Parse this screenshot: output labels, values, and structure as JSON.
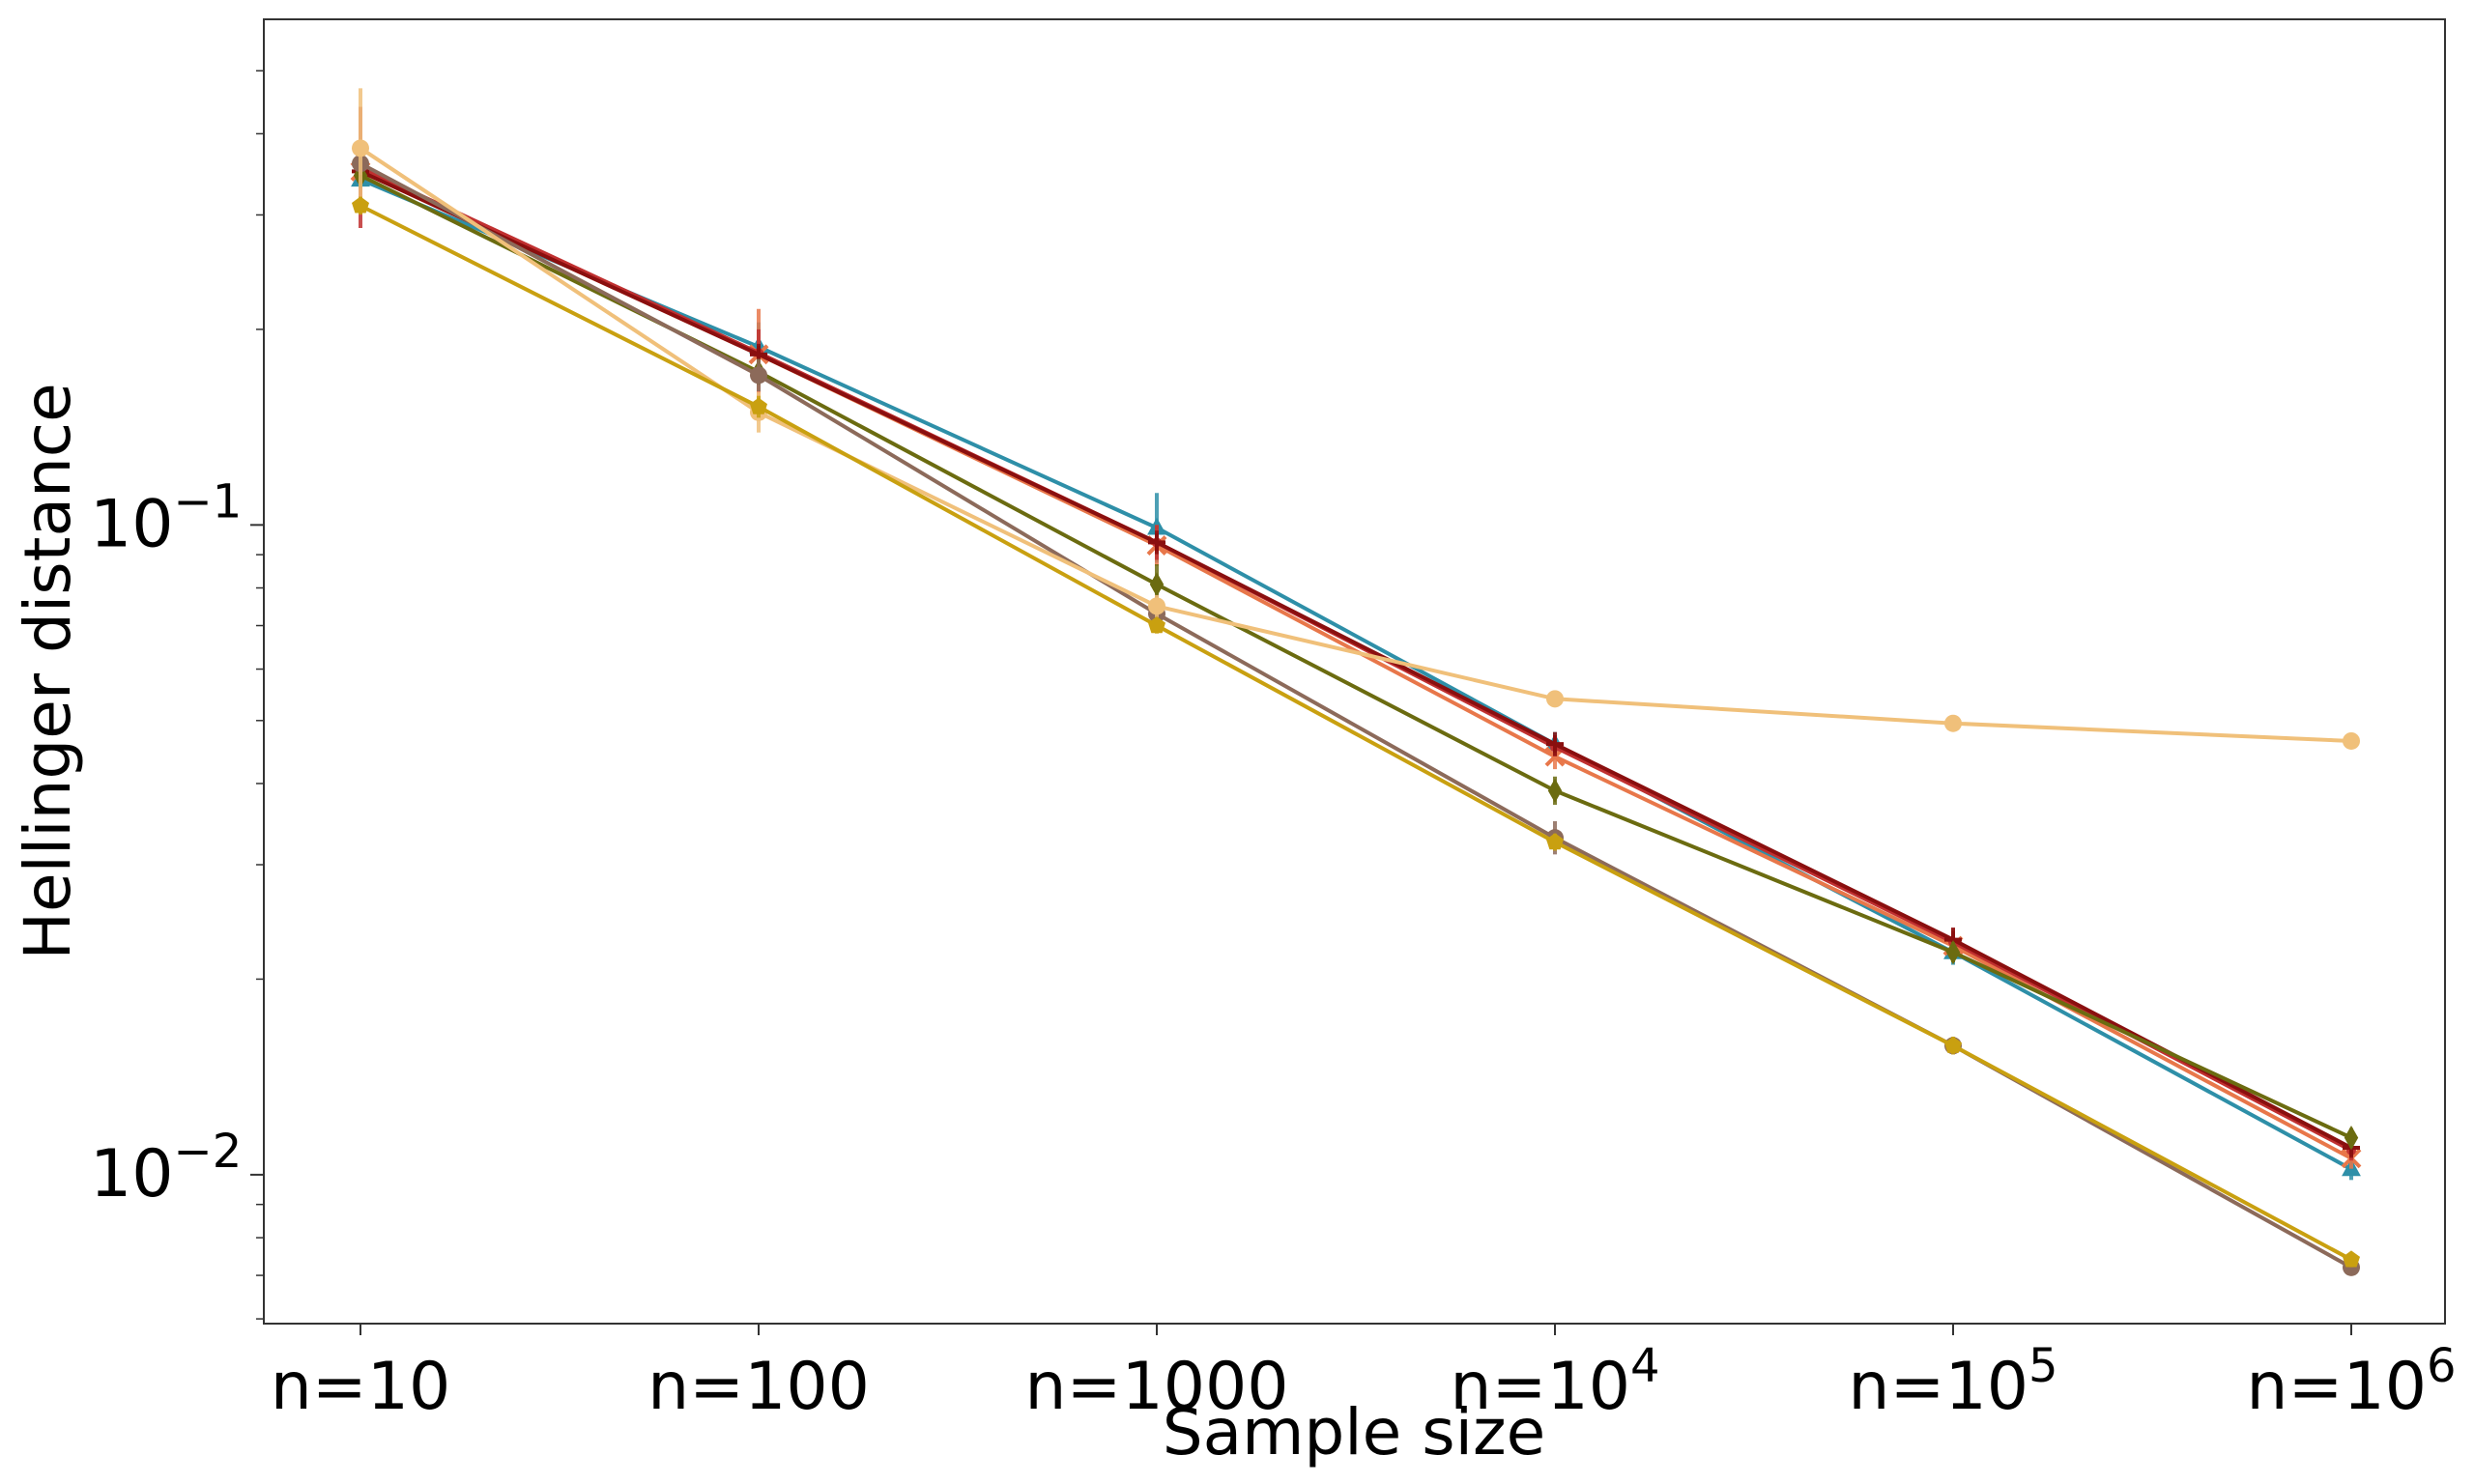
{
  "chart_data": {
    "type": "line",
    "title": "",
    "xlabel": "Sample size",
    "ylabel": "Hellinger distance",
    "x_categories": [
      {
        "base": "n=10",
        "sup": ""
      },
      {
        "base": "n=100",
        "sup": ""
      },
      {
        "base": "n=1000",
        "sup": ""
      },
      {
        "base": "n=10",
        "sup": "4"
      },
      {
        "base": "n=10",
        "sup": "5"
      },
      {
        "base": "n=10",
        "sup": "6"
      }
    ],
    "y_scale": "log",
    "ylim": [
      0.0059,
      0.6
    ],
    "y_ticks": [
      {
        "value": 0.1,
        "base": "10",
        "sup": "−1"
      },
      {
        "value": 0.01,
        "base": "10",
        "sup": "−2"
      }
    ],
    "grid": false,
    "legend": "none",
    "series": [
      {
        "color": "#2e8fa8",
        "marker": "triangle",
        "values": [
          0.34,
          0.188,
          0.099,
          0.046,
          0.022,
          0.0102
        ],
        "err_hi": [
          0.36,
          0.205,
          0.112,
          0.048,
          0.023,
          0.0106
        ]
      },
      {
        "color": "#e8774a",
        "marker": "x",
        "values": [
          0.35,
          0.183,
          0.093,
          0.044,
          0.0225,
          0.0106
        ],
        "err_hi": [
          0.39,
          0.215,
          0.1,
          0.046,
          0.0235,
          0.011
        ]
      },
      {
        "color": "#c03030",
        "marker": "dot",
        "values": [
          0.355,
          0.184,
          0.094,
          0.0455,
          0.0228,
          0.0109
        ],
        "err_hi": [
          0.44,
          0.2,
          0.1,
          0.047,
          0.024,
          0.0113
        ]
      },
      {
        "color": "#8a0f0f",
        "marker": "plus",
        "values": [
          0.35,
          0.183,
          0.094,
          0.046,
          0.023,
          0.011
        ],
        "err_hi": [
          0.37,
          0.19,
          0.098,
          0.048,
          0.024,
          0.0114
        ]
      },
      {
        "color": "#6b6b10",
        "marker": "diamond",
        "values": [
          0.345,
          0.172,
          0.081,
          0.039,
          0.022,
          0.0114
        ],
        "err_hi": [
          0.36,
          0.18,
          0.087,
          0.041,
          0.0228,
          0.0118
        ]
      },
      {
        "color": "#8c6a5a",
        "marker": "circle",
        "values": [
          0.36,
          0.17,
          0.073,
          0.033,
          0.0158,
          0.0072
        ],
        "err_hi": [
          0.375,
          0.18,
          0.078,
          0.035,
          0.0163,
          0.0074
        ]
      },
      {
        "color": "#f0c07a",
        "marker": "circle",
        "values": [
          0.38,
          0.149,
          0.075,
          0.054,
          0.0495,
          0.0465
        ],
        "err_hi": [
          0.47,
          0.16,
          0.078,
          0.055,
          0.0505,
          0.0475
        ]
      },
      {
        "color": "#c9a010",
        "marker": "pentagon",
        "values": [
          0.31,
          0.152,
          0.07,
          0.0325,
          0.0158,
          0.0074
        ],
        "err_hi": [
          0.32,
          0.158,
          0.072,
          0.0335,
          0.0163,
          0.0076
        ]
      }
    ]
  }
}
